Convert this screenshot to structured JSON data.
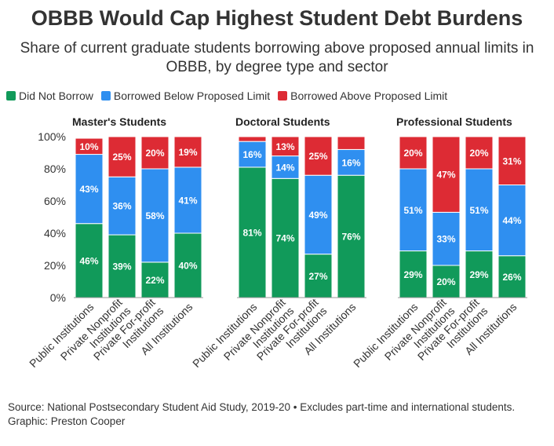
{
  "title": "OBBB Would Cap Highest Student Debt Burdens",
  "subtitle": "Share of current graduate students borrowing above proposed annual limits in OBBB, by degree type and sector",
  "legend": [
    {
      "label": "Did Not Borrow",
      "color": "#119a5a"
    },
    {
      "label": "Borrowed Below Proposed Limit",
      "color": "#2f8ff0"
    },
    {
      "label": "Borrowed Above Proposed Limit",
      "color": "#dd2b34"
    }
  ],
  "footer": {
    "source": "Source: National Postsecondary Student Aid Study, 2019-20 • Excludes part-time and international students.",
    "graphic": "Graphic: Preston Cooper"
  },
  "chart_data": {
    "type": "bar",
    "stacked": true,
    "ylim": [
      0,
      100
    ],
    "yticks": [
      "0%",
      "20%",
      "40%",
      "60%",
      "80%",
      "100%"
    ],
    "categories": [
      "Public Institutions",
      "Private Nonprofit Institutions",
      "Private For-profit Institutions",
      "All Institutions"
    ],
    "series_names": [
      "Did Not Borrow",
      "Borrowed Below Proposed Limit",
      "Borrowed Above Proposed Limit"
    ],
    "colors": [
      "#119a5a",
      "#2f8ff0",
      "#dd2b34"
    ],
    "panels": [
      {
        "title": "Master's Students",
        "values": [
          [
            46,
            43,
            10
          ],
          [
            39,
            36,
            25
          ],
          [
            22,
            58,
            20
          ],
          [
            40,
            41,
            19
          ]
        ],
        "labels": [
          [
            "46%",
            "43%",
            "10%"
          ],
          [
            "39%",
            "36%",
            "25%"
          ],
          [
            "22%",
            "58%",
            "20%"
          ],
          [
            "40%",
            "41%",
            "19%"
          ]
        ]
      },
      {
        "title": "Doctoral Students",
        "values": [
          [
            81,
            16,
            3
          ],
          [
            74,
            14,
            13
          ],
          [
            27,
            49,
            25
          ],
          [
            76,
            16,
            8
          ]
        ],
        "labels": [
          [
            "81%",
            "16%",
            ""
          ],
          [
            "74%",
            "14%",
            "13%"
          ],
          [
            "27%",
            "49%",
            "25%"
          ],
          [
            "76%",
            "16%",
            ""
          ]
        ]
      },
      {
        "title": "Professional Students",
        "values": [
          [
            29,
            51,
            20
          ],
          [
            20,
            33,
            47
          ],
          [
            29,
            51,
            20
          ],
          [
            26,
            44,
            31
          ]
        ],
        "labels": [
          [
            "29%",
            "51%",
            "20%"
          ],
          [
            "20%",
            "33%",
            "47%"
          ],
          [
            "29%",
            "51%",
            "20%"
          ],
          [
            "26%",
            "44%",
            "31%"
          ]
        ]
      }
    ]
  }
}
